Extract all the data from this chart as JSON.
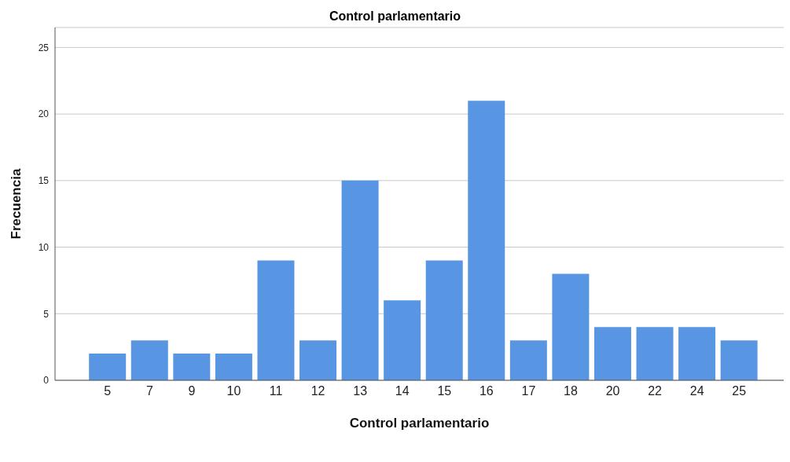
{
  "chart_data": {
    "type": "bar",
    "title": "Control parlamentario",
    "xlabel": "Control parlamentario",
    "ylabel": "Frecuencia",
    "categories": [
      "5",
      "7",
      "9",
      "10",
      "11",
      "12",
      "13",
      "14",
      "15",
      "16",
      "17",
      "18",
      "20",
      "22",
      "24",
      "25"
    ],
    "values": [
      2,
      3,
      2,
      2,
      9,
      3,
      15,
      6,
      9,
      21,
      3,
      8,
      4,
      4,
      4,
      3
    ],
    "color": "#5896e3",
    "ylim": [
      0,
      26.5
    ],
    "yticks": [
      0,
      5,
      10,
      15,
      20,
      25
    ],
    "grid": "y"
  }
}
